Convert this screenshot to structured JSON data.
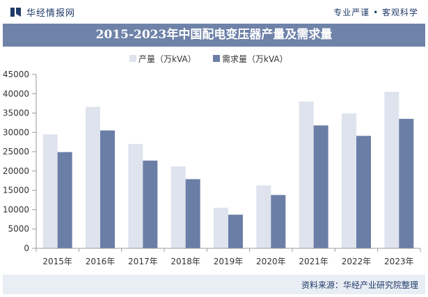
{
  "header": {
    "brand": "华经情报网",
    "slogan": "专业严谨 • 客观科学"
  },
  "footer": {
    "source": "资料来源：华经产业研究院整理"
  },
  "colors": {
    "production": "#dfe3ee",
    "demand": "#6b7ea6",
    "title_bg": "#6f83a9",
    "brand": "#1f3a68"
  },
  "chart_data": {
    "type": "bar",
    "title": "2015-2023年中国配电变压器产量及需求量",
    "categories": [
      "2015年",
      "2016年",
      "2017年",
      "2018年",
      "2019年",
      "2020年",
      "2021年",
      "2022年",
      "2023年"
    ],
    "series": [
      {
        "name": "产量（万kVA）",
        "values": [
          29500,
          36600,
          27000,
          21200,
          10500,
          16300,
          38000,
          34900,
          40500
        ]
      },
      {
        "name": "需求量（万kVA）",
        "values": [
          24900,
          30500,
          22700,
          17900,
          8700,
          13800,
          31800,
          29100,
          33500
        ]
      }
    ],
    "yticks": [
      0,
      5000,
      10000,
      15000,
      20000,
      25000,
      30000,
      35000,
      40000,
      45000
    ],
    "ylim": [
      0,
      45000
    ],
    "legend": "top-center",
    "grid": false
  }
}
